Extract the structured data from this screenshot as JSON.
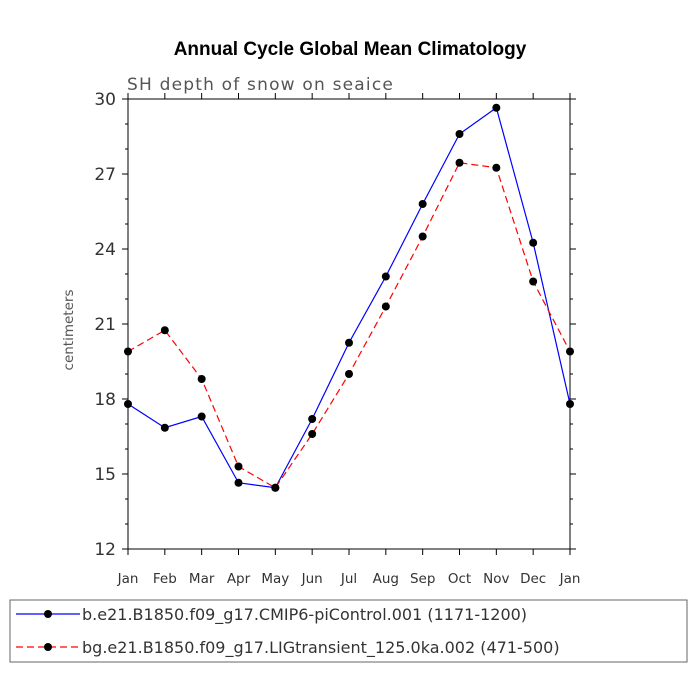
{
  "chart_data": {
    "type": "line",
    "title": "Annual Cycle Global Mean Climatology",
    "subtitle": "SH depth of snow on seaice",
    "ylabel": "centimeters",
    "xlabel": "",
    "categories": [
      "Jan",
      "Feb",
      "Mar",
      "Apr",
      "May",
      "Jun",
      "Jul",
      "Aug",
      "Sep",
      "Oct",
      "Nov",
      "Dec",
      "Jan"
    ],
    "ylim": [
      12,
      30
    ],
    "yticks": [
      "12",
      "15",
      "18",
      "21",
      "24",
      "27",
      "30"
    ],
    "grid": false,
    "legend_position": "bottom",
    "series": [
      {
        "name": "b.e21.B1850.f09_g17.CMIP6-piControl.001 (1171-1200)",
        "color": "#0000ff",
        "dash": "solid",
        "marker": "circle",
        "values": [
          17.8,
          16.85,
          17.3,
          14.65,
          14.45,
          17.2,
          20.25,
          22.9,
          25.8,
          28.6,
          29.65,
          24.25,
          17.8
        ]
      },
      {
        "name": "bg.e21.B1850.f09_g17.LIGtransient_125.0ka.002 (471-500)",
        "color": "#ff0000",
        "dash": "dashed",
        "marker": "circle",
        "values": [
          19.9,
          20.75,
          18.8,
          15.3,
          14.45,
          16.6,
          19.0,
          21.7,
          24.5,
          27.45,
          27.25,
          22.7,
          19.9
        ]
      }
    ]
  }
}
